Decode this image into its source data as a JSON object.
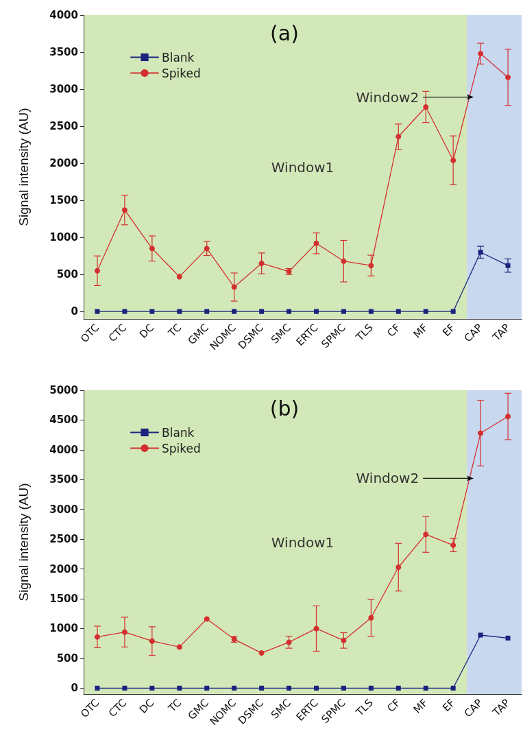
{
  "chart_data": [
    {
      "type": "line",
      "title": "(a)",
      "ylabel": "Signal intensity (AU)",
      "categories": [
        "OTC",
        "CTC",
        "DC",
        "TC",
        "GMC",
        "NOMC",
        "DSMC",
        "SMC",
        "ERTC",
        "SPMC",
        "TLS",
        "CF",
        "MF",
        "EF",
        "CAP",
        "TAP"
      ],
      "series": [
        {
          "name": "Blank",
          "color": "#1a237e",
          "marker": "square",
          "values": [
            0,
            0,
            0,
            0,
            0,
            0,
            0,
            0,
            0,
            0,
            0,
            0,
            0,
            0,
            800,
            620
          ],
          "errors": [
            null,
            null,
            null,
            null,
            null,
            null,
            null,
            null,
            null,
            null,
            null,
            null,
            null,
            null,
            80,
            90
          ]
        },
        {
          "name": "Spiked",
          "color": "#d32f2f",
          "marker": "circle",
          "values": [
            550,
            1370,
            850,
            470,
            850,
            330,
            650,
            540,
            920,
            680,
            620,
            2360,
            2760,
            2040,
            3480,
            3160
          ],
          "errors": [
            200,
            200,
            170,
            null,
            95,
            190,
            140,
            40,
            140,
            280,
            140,
            170,
            210,
            330,
            140,
            380
          ]
        }
      ],
      "ylim": [
        -100,
        4000
      ],
      "yticks": [
        0,
        500,
        1000,
        1500,
        2000,
        2500,
        3000,
        3500,
        4000
      ],
      "grid": false,
      "legend": "top left",
      "line_style": "solid",
      "bands": [
        {
          "axis": "x",
          "from": "OTC",
          "to": "EF",
          "label": "Window1",
          "color": "#d3e8b8"
        },
        {
          "axis": "x",
          "from": "CAP",
          "to": "TAP",
          "label": "Window2",
          "color": "#c8d8ef"
        }
      ]
    },
    {
      "type": "line",
      "title": "(b)",
      "ylabel": "Signal intensity (AU)",
      "categories": [
        "OTC",
        "CTC",
        "DC",
        "TC",
        "GMC",
        "NOMC",
        "DSMC",
        "SMC",
        "ERTC",
        "SPMC",
        "TLS",
        "CF",
        "MF",
        "EF",
        "CAP",
        "TAP"
      ],
      "series": [
        {
          "name": "Blank",
          "color": "#1a237e",
          "marker": "square",
          "values": [
            0,
            0,
            0,
            0,
            0,
            0,
            0,
            0,
            0,
            0,
            0,
            0,
            0,
            0,
            890,
            840
          ]
        },
        {
          "name": "Spiked",
          "color": "#d32f2f",
          "marker": "circle",
          "values": [
            860,
            940,
            790,
            690,
            1160,
            820,
            590,
            770,
            1000,
            800,
            1180,
            2030,
            2580,
            2400,
            4280,
            4560
          ],
          "errors": [
            180,
            250,
            240,
            null,
            null,
            50,
            null,
            100,
            380,
            130,
            310,
            400,
            300,
            110,
            550,
            390
          ]
        }
      ],
      "ylim": [
        -100,
        5000
      ],
      "yticks": [
        0,
        500,
        1000,
        1500,
        2000,
        2500,
        3000,
        3500,
        4000,
        4500,
        5000
      ],
      "grid": false,
      "legend": "top left",
      "line_style": "solid",
      "bands": [
        {
          "axis": "x",
          "from": "OTC",
          "to": "EF",
          "label": "Window1",
          "color": "#d3e8b8"
        },
        {
          "axis": "x",
          "from": "CAP",
          "to": "TAP",
          "label": "Window2",
          "color": "#c8d8ef"
        }
      ]
    }
  ]
}
